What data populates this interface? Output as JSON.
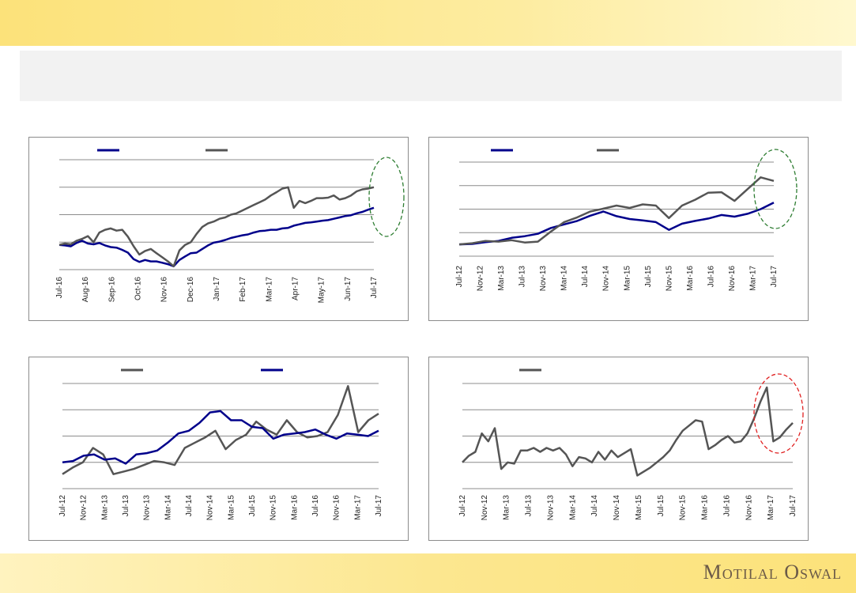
{
  "brand": {
    "name": "Motilal Oswal"
  },
  "colors": {
    "navy": "#00008b",
    "grey": "#555555",
    "grid": "#8c8c8c",
    "green_ellipse": "#2e7d32",
    "red_ellipse": "#e02020"
  },
  "chart_data": [
    {
      "id": "top-left",
      "type": "line",
      "title": "",
      "xlabel": "",
      "ylabel": "",
      "x_ticks": [
        "Jul-16",
        "Aug-16",
        "Sep-16",
        "Oct-16",
        "Nov-16",
        "Dec-16",
        "Jan-17",
        "Feb-17",
        "Mar-17",
        "Apr-17",
        "May-17",
        "Jun-17",
        "Jul-17"
      ],
      "ylim": [
        0,
        4
      ],
      "grid": true,
      "legend": "top-left",
      "highlight": {
        "shape": "ellipse",
        "color": "green",
        "period": "Jul-17"
      },
      "series": [
        {
          "name": "",
          "color": "#00008b",
          "values": [
            0.9,
            0.88,
            0.85,
            0.97,
            1.05,
            0.95,
            0.92,
            0.97,
            0.88,
            0.82,
            0.8,
            0.72,
            0.62,
            0.38,
            0.28,
            0.35,
            0.3,
            0.3,
            0.25,
            0.2,
            0.12,
            0.35,
            0.48,
            0.6,
            0.62,
            0.75,
            0.88,
            0.98,
            1.02,
            1.08,
            1.15,
            1.2,
            1.25,
            1.28,
            1.35,
            1.4,
            1.42,
            1.45,
            1.45,
            1.5,
            1.52,
            1.6,
            1.65,
            1.7,
            1.72,
            1.75,
            1.78,
            1.8,
            1.85,
            1.9,
            1.95,
            1.98,
            2.05,
            2.1,
            2.18,
            2.25
          ]
        },
        {
          "name": "",
          "color": "#555555",
          "values": [
            0.9,
            0.95,
            0.92,
            1.05,
            1.12,
            1.22,
            1.0,
            1.35,
            1.45,
            1.5,
            1.42,
            1.45,
            1.2,
            0.85,
            0.55,
            0.68,
            0.75,
            0.6,
            0.45,
            0.3,
            0.12,
            0.7,
            0.9,
            1.0,
            1.3,
            1.55,
            1.68,
            1.75,
            1.85,
            1.9,
            2.0,
            2.05,
            2.15,
            2.25,
            2.35,
            2.45,
            2.55,
            2.7,
            2.82,
            2.95,
            3.0,
            2.25,
            2.5,
            2.42,
            2.5,
            2.6,
            2.6,
            2.62,
            2.7,
            2.55,
            2.6,
            2.7,
            2.85,
            2.92,
            2.95,
            3.0
          ]
        }
      ]
    },
    {
      "id": "top-right",
      "type": "line",
      "title": "",
      "xlabel": "",
      "ylabel": "",
      "x_ticks": [
        "Jul-12",
        "Nov-12",
        "Mar-13",
        "Jul-13",
        "Nov-13",
        "Mar-14",
        "Jul-14",
        "Nov-14",
        "Mar-15",
        "Jul-15",
        "Nov-15",
        "Mar-16",
        "Jul-16",
        "Nov-16",
        "Mar-17",
        "Jul-17"
      ],
      "ylim": [
        0,
        4
      ],
      "grid": true,
      "legend": "top-left",
      "highlight": {
        "shape": "ellipse",
        "color": "green",
        "period": "Jul-17"
      },
      "series": [
        {
          "name": "",
          "color": "#00008b",
          "values": [
            0.5,
            0.52,
            0.6,
            0.65,
            0.78,
            0.85,
            0.95,
            1.2,
            1.35,
            1.5,
            1.72,
            1.9,
            1.7,
            1.58,
            1.52,
            1.45,
            1.12,
            1.38,
            1.5,
            1.6,
            1.75,
            1.68,
            1.8,
            2.0,
            2.28
          ]
        },
        {
          "name": "",
          "color": "#555555",
          "values": [
            0.5,
            0.55,
            0.65,
            0.62,
            0.68,
            0.58,
            0.62,
            1.05,
            1.45,
            1.65,
            1.9,
            2.02,
            2.15,
            2.05,
            2.2,
            2.15,
            1.62,
            2.15,
            2.4,
            2.7,
            2.72,
            2.35,
            2.85,
            3.35,
            3.2
          ]
        }
      ]
    },
    {
      "id": "bottom-left",
      "type": "line",
      "title": "",
      "xlabel": "",
      "ylabel": "",
      "x_ticks": [
        "Jul-12",
        "Nov-12",
        "Mar-13",
        "Jul-13",
        "Nov-13",
        "Mar-14",
        "Jul-14",
        "Nov-14",
        "Mar-15",
        "Jul-15",
        "Nov-15",
        "Mar-16",
        "Jul-16",
        "Nov-16",
        "Mar-17",
        "Jul-17"
      ],
      "ylim": [
        0,
        4
      ],
      "grid": true,
      "legend": "top-left",
      "series": [
        {
          "name": "",
          "color": "#555555",
          "values": [
            0.55,
            0.8,
            1.0,
            1.55,
            1.3,
            0.55,
            0.65,
            0.75,
            0.9,
            1.05,
            1.0,
            0.9,
            1.55,
            1.75,
            1.95,
            2.2,
            1.5,
            1.85,
            2.05,
            2.55,
            2.25,
            2.05,
            2.6,
            2.15,
            1.95,
            2.0,
            2.15,
            2.8,
            3.9,
            2.15,
            2.6,
            2.85
          ]
        },
        {
          "name": "",
          "color": "#00008b",
          "values": [
            1.0,
            1.05,
            1.25,
            1.3,
            1.1,
            1.15,
            0.95,
            1.3,
            1.35,
            1.45,
            1.75,
            2.1,
            2.2,
            2.5,
            2.9,
            2.95,
            2.6,
            2.6,
            2.35,
            2.3,
            1.9,
            2.05,
            2.1,
            2.15,
            2.25,
            2.05,
            1.9,
            2.1,
            2.05,
            2.0,
            2.2
          ]
        }
      ]
    },
    {
      "id": "bottom-right",
      "type": "line",
      "title": "",
      "xlabel": "",
      "ylabel": "",
      "x_ticks": [
        "Jul-12",
        "Nov-12",
        "Mar-13",
        "Jul-13",
        "Nov-13",
        "Mar-14",
        "Jul-14",
        "Nov-14",
        "Mar-15",
        "Jul-15",
        "Nov-15",
        "Mar-16",
        "Jul-16",
        "Nov-16",
        "Mar-17",
        "Jul-17"
      ],
      "ylim": [
        0,
        4
      ],
      "grid": true,
      "legend": "top-left",
      "highlight": {
        "shape": "ellipse",
        "color": "red",
        "period": "Mar-17"
      },
      "series": [
        {
          "name": "",
          "color": "#555555",
          "values": [
            1.0,
            1.25,
            1.4,
            2.1,
            1.8,
            2.3,
            0.75,
            1.0,
            0.95,
            1.45,
            1.45,
            1.55,
            1.4,
            1.55,
            1.45,
            1.55,
            1.3,
            0.85,
            1.2,
            1.15,
            1.0,
            1.4,
            1.1,
            1.45,
            1.2,
            1.35,
            1.5,
            0.5,
            0.65,
            0.8,
            1.0,
            1.2,
            1.45,
            1.85,
            2.2,
            2.4,
            2.6,
            2.55,
            1.5,
            1.65,
            1.85,
            2.0,
            1.75,
            1.8,
            2.1,
            2.65,
            3.3,
            3.85,
            1.8,
            1.95,
            2.25,
            2.5
          ]
        }
      ]
    }
  ]
}
